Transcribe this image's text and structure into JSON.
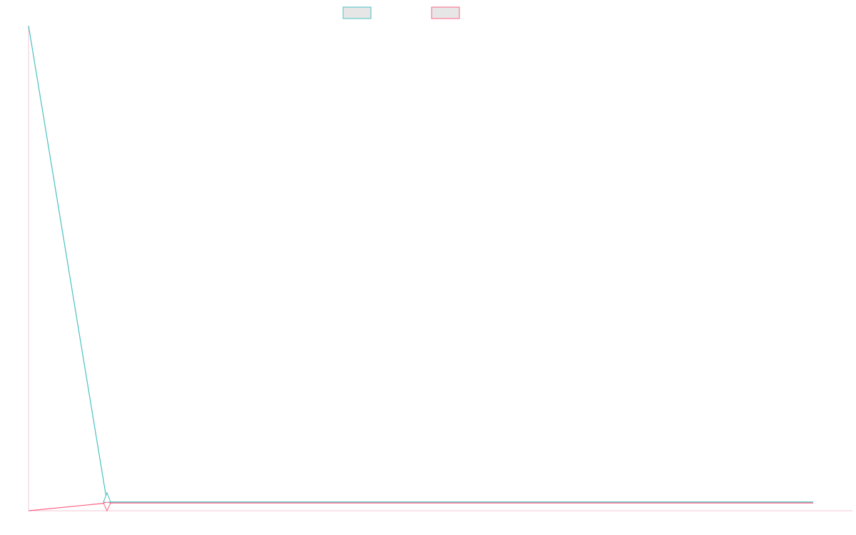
{
  "chart_data": {
    "type": "line",
    "title": "",
    "xlabel": "",
    "ylabel": "",
    "grid": false,
    "legend": "top-center",
    "x": [
      0,
      1,
      2,
      3,
      4,
      5,
      6,
      7,
      8,
      9,
      10
    ],
    "xlim": [
      0,
      10.5
    ],
    "ylim": [
      0,
      100
    ],
    "series": [
      {
        "values": [
          100,
          1.8,
          1.8,
          1.8,
          1.8,
          1.8,
          1.8,
          1.8,
          1.8,
          1.8,
          1.8
        ],
        "color": "#4bc0c0"
      },
      {
        "values": [
          0,
          1.6,
          1.6,
          1.6,
          1.6,
          1.6,
          1.6,
          1.6,
          1.6,
          1.6,
          1.6
        ],
        "color": "#ff6384"
      }
    ],
    "markers": [
      {
        "series": 0,
        "x": 1,
        "y": 1.8,
        "shape": "diamond-up"
      },
      {
        "series": 1,
        "x": 1,
        "y": 1.6,
        "shape": "diamond-down"
      }
    ]
  },
  "legend_fill_color": "#e6e6e6"
}
